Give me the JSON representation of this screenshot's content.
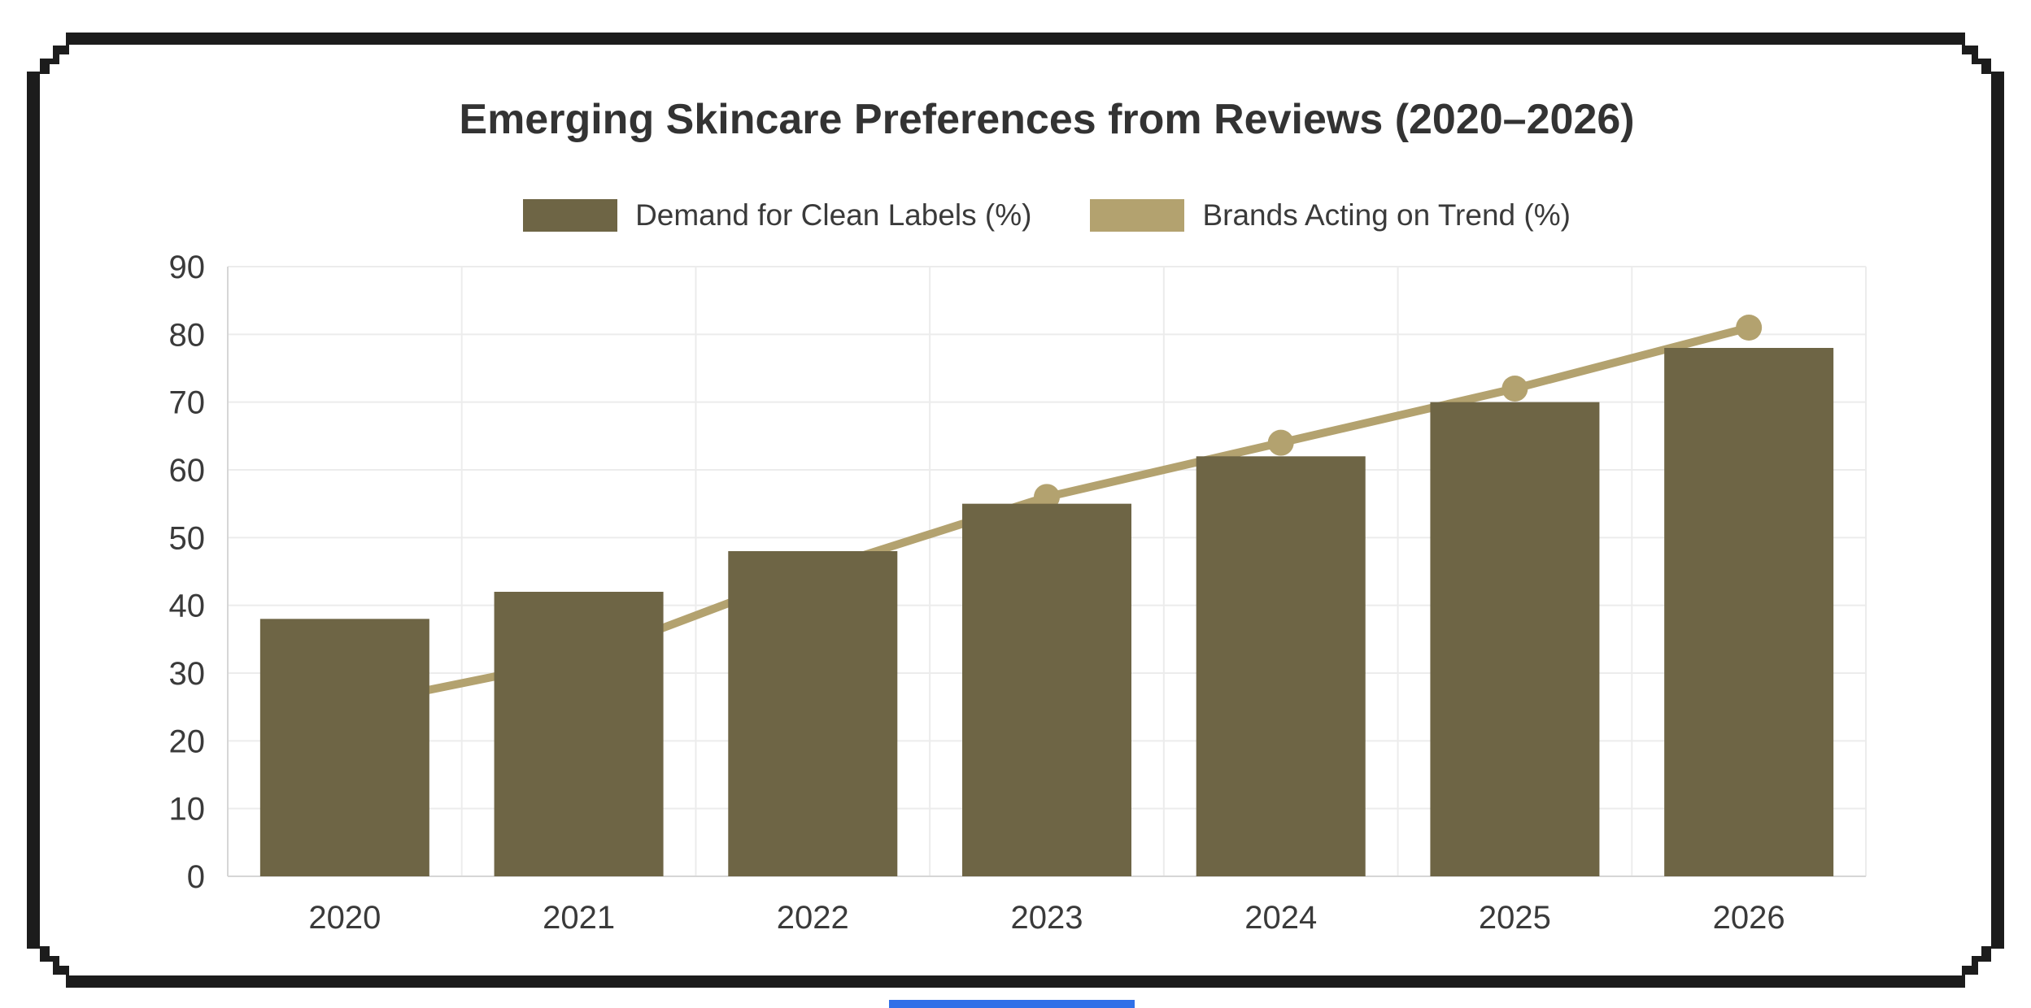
{
  "page": {
    "background": "#ffffff",
    "frame_color": "#1c1c1c",
    "bottom_strip_color": "#3070e8"
  },
  "chart_data": {
    "type": "bar+line",
    "title": "Emerging Skincare Preferences from Reviews (2020–2026)",
    "categories": [
      "2020",
      "2021",
      "2022",
      "2023",
      "2024",
      "2025",
      "2026"
    ],
    "series": [
      {
        "name": "Demand for Clean Labels (%)",
        "type": "bar",
        "color": "#6E6545",
        "values": [
          38,
          42,
          48,
          55,
          62,
          70,
          78
        ]
      },
      {
        "name": "Brands Acting on Trend (%)",
        "type": "line",
        "color": "#B3A26F",
        "values": [
          25,
          32,
          45,
          56,
          64,
          72,
          81
        ]
      }
    ],
    "ylim": [
      0,
      90
    ],
    "yticks": [
      0,
      10,
      20,
      30,
      40,
      50,
      60,
      70,
      80,
      90
    ],
    "grid": true,
    "legend_position": "top-center",
    "text_color": "#3a3a3a",
    "grid_color": "#ececec",
    "axis_color": "#d6d6d6"
  }
}
